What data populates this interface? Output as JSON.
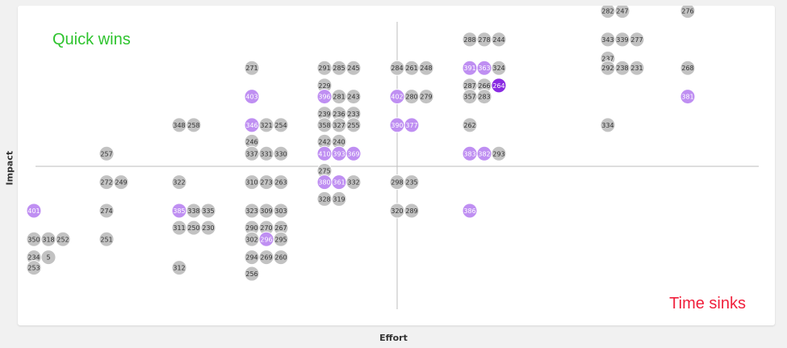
{
  "labels": {
    "quick_wins": "Quick wins",
    "time_sinks": "Time sinks",
    "x_axis": "Effort",
    "y_axis": "Impact"
  },
  "colors": {
    "background": "#f1f1f1",
    "panel": "#ffffff",
    "quick_wins": "#2ec32e",
    "time_sinks": "#f0203c",
    "dot_default": "#c2c2c2",
    "dot_highlight": "#bf8ff2",
    "dot_selected": "#8a2be2",
    "divider": "#bdbdbd"
  },
  "chart_data": {
    "type": "scatter",
    "title": "",
    "xlabel": "Effort",
    "ylabel": "Impact",
    "quadrant_labels": {
      "top_left": "Quick wins",
      "bottom_right": "Time sinks"
    },
    "point_states": [
      "default",
      "highlighted",
      "selected"
    ],
    "points": [
      {
        "id": "282",
        "x": 9.1,
        "y": 10.2,
        "state": "default"
      },
      {
        "id": "247",
        "x": 9.3,
        "y": 10.2,
        "state": "default"
      },
      {
        "id": "276",
        "x": 10.2,
        "y": 10.2,
        "state": "default"
      },
      {
        "id": "288",
        "x": 7.2,
        "y": 9.25,
        "state": "default"
      },
      {
        "id": "278",
        "x": 7.4,
        "y": 9.25,
        "state": "default"
      },
      {
        "id": "244",
        "x": 7.6,
        "y": 9.25,
        "state": "default"
      },
      {
        "id": "343",
        "x": 9.1,
        "y": 9.25,
        "state": "default"
      },
      {
        "id": "339",
        "x": 9.3,
        "y": 9.25,
        "state": "default"
      },
      {
        "id": "277",
        "x": 9.5,
        "y": 9.25,
        "state": "default"
      },
      {
        "id": "237",
        "x": 9.1,
        "y": 8.62,
        "state": "default"
      },
      {
        "id": "271",
        "x": 4.2,
        "y": 8.3,
        "state": "default"
      },
      {
        "id": "291",
        "x": 5.2,
        "y": 8.3,
        "state": "default"
      },
      {
        "id": "285",
        "x": 5.4,
        "y": 8.3,
        "state": "default"
      },
      {
        "id": "245",
        "x": 5.6,
        "y": 8.3,
        "state": "default"
      },
      {
        "id": "284",
        "x": 6.2,
        "y": 8.3,
        "state": "default"
      },
      {
        "id": "261",
        "x": 6.4,
        "y": 8.3,
        "state": "default"
      },
      {
        "id": "248",
        "x": 6.6,
        "y": 8.3,
        "state": "default"
      },
      {
        "id": "391",
        "x": 7.2,
        "y": 8.3,
        "state": "highlighted"
      },
      {
        "id": "363",
        "x": 7.4,
        "y": 8.3,
        "state": "highlighted"
      },
      {
        "id": "324",
        "x": 7.6,
        "y": 8.3,
        "state": "default"
      },
      {
        "id": "292",
        "x": 9.1,
        "y": 8.3,
        "state": "default"
      },
      {
        "id": "238",
        "x": 9.3,
        "y": 8.3,
        "state": "default"
      },
      {
        "id": "231",
        "x": 9.5,
        "y": 8.3,
        "state": "default"
      },
      {
        "id": "268",
        "x": 10.2,
        "y": 8.3,
        "state": "default"
      },
      {
        "id": "229",
        "x": 5.2,
        "y": 7.72,
        "state": "default"
      },
      {
        "id": "287",
        "x": 7.2,
        "y": 7.72,
        "state": "default"
      },
      {
        "id": "266",
        "x": 7.4,
        "y": 7.72,
        "state": "default"
      },
      {
        "id": "264",
        "x": 7.6,
        "y": 7.72,
        "state": "selected"
      },
      {
        "id": "403",
        "x": 4.2,
        "y": 7.35,
        "state": "highlighted"
      },
      {
        "id": "396",
        "x": 5.2,
        "y": 7.35,
        "state": "highlighted"
      },
      {
        "id": "281",
        "x": 5.4,
        "y": 7.35,
        "state": "default"
      },
      {
        "id": "243",
        "x": 5.6,
        "y": 7.35,
        "state": "default"
      },
      {
        "id": "402",
        "x": 6.2,
        "y": 7.35,
        "state": "highlighted"
      },
      {
        "id": "280",
        "x": 6.4,
        "y": 7.35,
        "state": "default"
      },
      {
        "id": "279",
        "x": 6.6,
        "y": 7.35,
        "state": "default"
      },
      {
        "id": "357",
        "x": 7.2,
        "y": 7.35,
        "state": "default"
      },
      {
        "id": "283",
        "x": 7.4,
        "y": 7.35,
        "state": "default"
      },
      {
        "id": "381",
        "x": 10.2,
        "y": 7.35,
        "state": "highlighted"
      },
      {
        "id": "239",
        "x": 5.2,
        "y": 6.78,
        "state": "default"
      },
      {
        "id": "236",
        "x": 5.4,
        "y": 6.78,
        "state": "default"
      },
      {
        "id": "233",
        "x": 5.6,
        "y": 6.78,
        "state": "default"
      },
      {
        "id": "348",
        "x": 3.2,
        "y": 6.4,
        "state": "default"
      },
      {
        "id": "258",
        "x": 3.4,
        "y": 6.4,
        "state": "default"
      },
      {
        "id": "346",
        "x": 4.2,
        "y": 6.4,
        "state": "highlighted"
      },
      {
        "id": "321",
        "x": 4.4,
        "y": 6.4,
        "state": "default"
      },
      {
        "id": "254",
        "x": 4.6,
        "y": 6.4,
        "state": "default"
      },
      {
        "id": "358",
        "x": 5.2,
        "y": 6.4,
        "state": "default"
      },
      {
        "id": "327",
        "x": 5.4,
        "y": 6.4,
        "state": "default"
      },
      {
        "id": "255",
        "x": 5.6,
        "y": 6.4,
        "state": "default"
      },
      {
        "id": "390",
        "x": 6.2,
        "y": 6.4,
        "state": "highlighted"
      },
      {
        "id": "377",
        "x": 6.4,
        "y": 6.4,
        "state": "highlighted"
      },
      {
        "id": "262",
        "x": 7.2,
        "y": 6.4,
        "state": "default"
      },
      {
        "id": "334",
        "x": 9.1,
        "y": 6.4,
        "state": "default"
      },
      {
        "id": "246",
        "x": 4.2,
        "y": 5.85,
        "state": "default"
      },
      {
        "id": "242",
        "x": 5.2,
        "y": 5.85,
        "state": "default"
      },
      {
        "id": "240",
        "x": 5.4,
        "y": 5.85,
        "state": "default"
      },
      {
        "id": "257",
        "x": 2.2,
        "y": 5.45,
        "state": "default"
      },
      {
        "id": "337",
        "x": 4.2,
        "y": 5.45,
        "state": "default"
      },
      {
        "id": "331",
        "x": 4.4,
        "y": 5.45,
        "state": "default"
      },
      {
        "id": "330",
        "x": 4.6,
        "y": 5.45,
        "state": "default"
      },
      {
        "id": "410",
        "x": 5.2,
        "y": 5.45,
        "state": "highlighted"
      },
      {
        "id": "393",
        "x": 5.4,
        "y": 5.45,
        "state": "highlighted"
      },
      {
        "id": "369",
        "x": 5.6,
        "y": 5.45,
        "state": "highlighted"
      },
      {
        "id": "383",
        "x": 7.2,
        "y": 5.45,
        "state": "highlighted"
      },
      {
        "id": "382",
        "x": 7.4,
        "y": 5.45,
        "state": "highlighted"
      },
      {
        "id": "293",
        "x": 7.6,
        "y": 5.45,
        "state": "default"
      },
      {
        "id": "275",
        "x": 5.2,
        "y": 4.88,
        "state": "default"
      },
      {
        "id": "272",
        "x": 2.2,
        "y": 4.5,
        "state": "default"
      },
      {
        "id": "249",
        "x": 2.4,
        "y": 4.5,
        "state": "default"
      },
      {
        "id": "322",
        "x": 3.2,
        "y": 4.5,
        "state": "default"
      },
      {
        "id": "310",
        "x": 4.2,
        "y": 4.5,
        "state": "default"
      },
      {
        "id": "273",
        "x": 4.4,
        "y": 4.5,
        "state": "default"
      },
      {
        "id": "263",
        "x": 4.6,
        "y": 4.5,
        "state": "default"
      },
      {
        "id": "380",
        "x": 5.2,
        "y": 4.5,
        "state": "highlighted"
      },
      {
        "id": "361",
        "x": 5.4,
        "y": 4.5,
        "state": "highlighted"
      },
      {
        "id": "332",
        "x": 5.6,
        "y": 4.5,
        "state": "default"
      },
      {
        "id": "298",
        "x": 6.2,
        "y": 4.5,
        "state": "default"
      },
      {
        "id": "235",
        "x": 6.4,
        "y": 4.5,
        "state": "default"
      },
      {
        "id": "328",
        "x": 5.2,
        "y": 3.94,
        "state": "default"
      },
      {
        "id": "319",
        "x": 5.4,
        "y": 3.94,
        "state": "default"
      },
      {
        "id": "401",
        "x": 1.2,
        "y": 3.55,
        "state": "highlighted"
      },
      {
        "id": "274",
        "x": 2.2,
        "y": 3.55,
        "state": "default"
      },
      {
        "id": "385",
        "x": 3.2,
        "y": 3.55,
        "state": "highlighted"
      },
      {
        "id": "338",
        "x": 3.4,
        "y": 3.55,
        "state": "default"
      },
      {
        "id": "335",
        "x": 3.6,
        "y": 3.55,
        "state": "default"
      },
      {
        "id": "323",
        "x": 4.2,
        "y": 3.55,
        "state": "default"
      },
      {
        "id": "309",
        "x": 4.4,
        "y": 3.55,
        "state": "default"
      },
      {
        "id": "303",
        "x": 4.6,
        "y": 3.55,
        "state": "default"
      },
      {
        "id": "320",
        "x": 6.2,
        "y": 3.55,
        "state": "default"
      },
      {
        "id": "289",
        "x": 6.4,
        "y": 3.55,
        "state": "default"
      },
      {
        "id": "386",
        "x": 7.2,
        "y": 3.55,
        "state": "highlighted"
      },
      {
        "id": "311",
        "x": 3.2,
        "y": 2.98,
        "state": "default"
      },
      {
        "id": "250",
        "x": 3.4,
        "y": 2.98,
        "state": "default"
      },
      {
        "id": "230",
        "x": 3.6,
        "y": 2.98,
        "state": "default"
      },
      {
        "id": "290",
        "x": 4.2,
        "y": 2.98,
        "state": "default"
      },
      {
        "id": "270",
        "x": 4.4,
        "y": 2.98,
        "state": "default"
      },
      {
        "id": "267",
        "x": 4.6,
        "y": 2.98,
        "state": "default"
      },
      {
        "id": "350",
        "x": 1.2,
        "y": 2.6,
        "state": "default"
      },
      {
        "id": "318",
        "x": 1.4,
        "y": 2.6,
        "state": "default"
      },
      {
        "id": "252",
        "x": 1.6,
        "y": 2.6,
        "state": "default"
      },
      {
        "id": "251",
        "x": 2.2,
        "y": 2.6,
        "state": "default"
      },
      {
        "id": "302",
        "x": 4.2,
        "y": 2.6,
        "state": "default"
      },
      {
        "id": "296",
        "x": 4.4,
        "y": 2.6,
        "state": "highlighted"
      },
      {
        "id": "295",
        "x": 4.6,
        "y": 2.6,
        "state": "default"
      },
      {
        "id": "234",
        "x": 1.2,
        "y": 2.0,
        "state": "default"
      },
      {
        "id": "5",
        "x": 1.4,
        "y": 2.0,
        "state": "default"
      },
      {
        "id": "294",
        "x": 4.2,
        "y": 2.0,
        "state": "default"
      },
      {
        "id": "269",
        "x": 4.4,
        "y": 2.0,
        "state": "default"
      },
      {
        "id": "260",
        "x": 4.6,
        "y": 2.0,
        "state": "default"
      },
      {
        "id": "253",
        "x": 1.2,
        "y": 1.65,
        "state": "default"
      },
      {
        "id": "312",
        "x": 3.2,
        "y": 1.65,
        "state": "default"
      },
      {
        "id": "256",
        "x": 4.2,
        "y": 1.45,
        "state": "default"
      }
    ]
  }
}
